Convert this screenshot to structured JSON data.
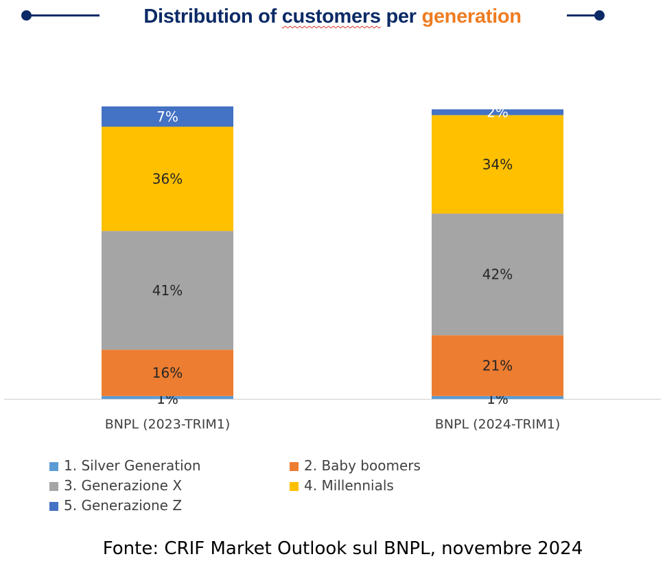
{
  "header": {
    "title_part1": "Distribution of ",
    "title_part2": "customers",
    "title_part3": " per ",
    "title_part4": "generation",
    "accent_color": "#0b2a66",
    "highlight_color": "#ee7d22"
  },
  "chart_data": {
    "type": "bar",
    "stacked": true,
    "categories": [
      "BNPL (2023-TRIM1)",
      "BNPL (2024-TRIM1)"
    ],
    "series": [
      {
        "name": "1. Silver Generation",
        "values": [
          1,
          1
        ],
        "color": "#5b9bd5",
        "labels": [
          "1%",
          "1%"
        ]
      },
      {
        "name": "2. Baby boomers",
        "values": [
          16,
          21
        ],
        "color": "#ed7d31",
        "labels": [
          "16%",
          "21%"
        ]
      },
      {
        "name": "3. Generazione X",
        "values": [
          41,
          42
        ],
        "color": "#a5a5a5",
        "labels": [
          "41%",
          "42%"
        ]
      },
      {
        "name": "4. Millennials",
        "values": [
          36,
          34
        ],
        "color": "#ffc000",
        "labels": [
          "36%",
          "34%"
        ]
      },
      {
        "name": "5. Generazione Z",
        "values": [
          7,
          2
        ],
        "color": "#4472c4",
        "labels": [
          "7%",
          "2%"
        ]
      }
    ],
    "ylim": [
      0,
      101
    ],
    "grid": false,
    "legend_position": "bottom"
  },
  "source": "Fonte: CRIF Market Outlook sul BNPL, novembre 2024"
}
